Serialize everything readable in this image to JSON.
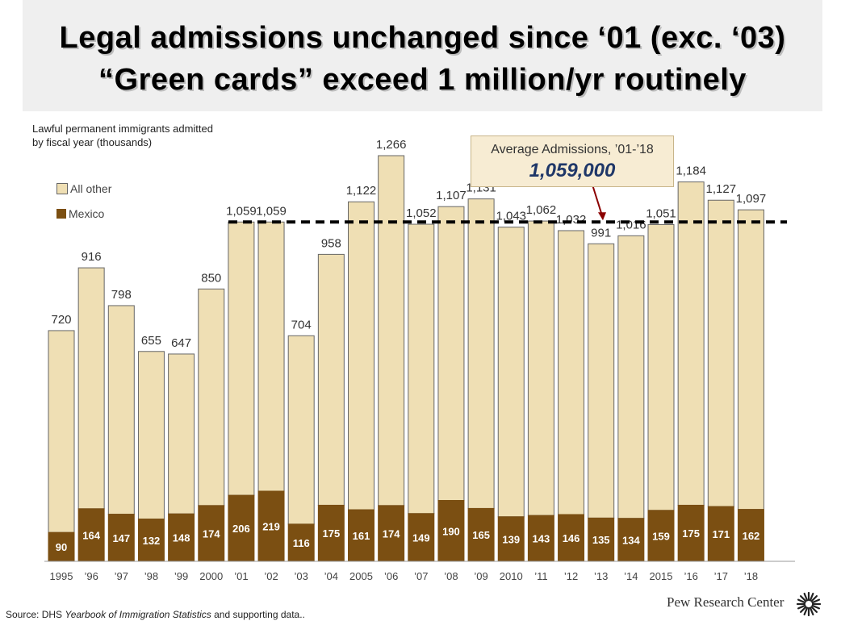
{
  "title": {
    "line1": "Legal admissions unchanged since ‘01 (exc. ‘03)",
    "line2": "“Green cards” exceed 1 million/yr routinely"
  },
  "subtitle": {
    "line1": "Lawful permanent immigrants admitted",
    "line2": "by fiscal year (thousands)"
  },
  "legend": {
    "all_other": "All other",
    "mexico": "Mexico"
  },
  "average": {
    "label": "Average Admissions, ’01-’18",
    "value": "1,059,000",
    "reference_value": 1059
  },
  "colors": {
    "all_other": "#efdfb4",
    "mexico": "#7b4f12",
    "outline": "#666666",
    "arrow": "#8b0000"
  },
  "chart_data": {
    "type": "bar",
    "stacked": true,
    "title": "Lawful permanent immigrants admitted by fiscal year (thousands)",
    "categories": [
      "1995",
      "’96",
      "’97",
      "’98",
      "’99",
      "2000",
      "’01",
      "’02",
      "’03",
      "’04",
      "2005",
      "’06",
      "’07",
      "’08",
      "’09",
      "2010",
      "’11",
      "’12",
      "’13",
      "’14",
      "2015",
      "’16",
      "’17",
      "’18"
    ],
    "series": [
      {
        "name": "Mexico",
        "values": [
          90,
          164,
          147,
          132,
          148,
          174,
          206,
          219,
          116,
          175,
          161,
          174,
          149,
          190,
          165,
          139,
          143,
          146,
          135,
          134,
          159,
          175,
          171,
          162
        ]
      },
      {
        "name": "All other",
        "values": [
          630,
          752,
          651,
          523,
          499,
          676,
          853,
          840,
          588,
          783,
          961,
          1092,
          903,
          917,
          966,
          904,
          919,
          886,
          856,
          882,
          892,
          1009,
          956,
          935
        ]
      }
    ],
    "totals": [
      720,
      916,
      798,
      655,
      647,
      850,
      1059,
      1059,
      704,
      958,
      1122,
      1266,
      1052,
      1107,
      1131,
      1043,
      1062,
      1032,
      991,
      1016,
      1051,
      1184,
      1127,
      1097
    ],
    "total_labels": [
      "720",
      "916",
      "798",
      "655",
      "647",
      "850",
      "1,059",
      "1,059",
      "704",
      "958",
      "1,122",
      "1,266",
      "1,052",
      "1,107",
      "1,131",
      "1,043",
      "1,062",
      "1,032",
      "991",
      "1,016",
      "1,051",
      "1,184",
      "1,127",
      "1,097"
    ],
    "reference_line": {
      "value": 1059,
      "label": "Average Admissions, ’01-’18"
    },
    "ylim": [
      0,
      1340
    ],
    "xlabel": "",
    "ylabel": ""
  },
  "footer": {
    "source_prefix": "Source: DHS ",
    "source_italic": "Yearbook of Immigration Statistics",
    "source_suffix": " and supporting data..",
    "brand": "Pew Research Center"
  }
}
